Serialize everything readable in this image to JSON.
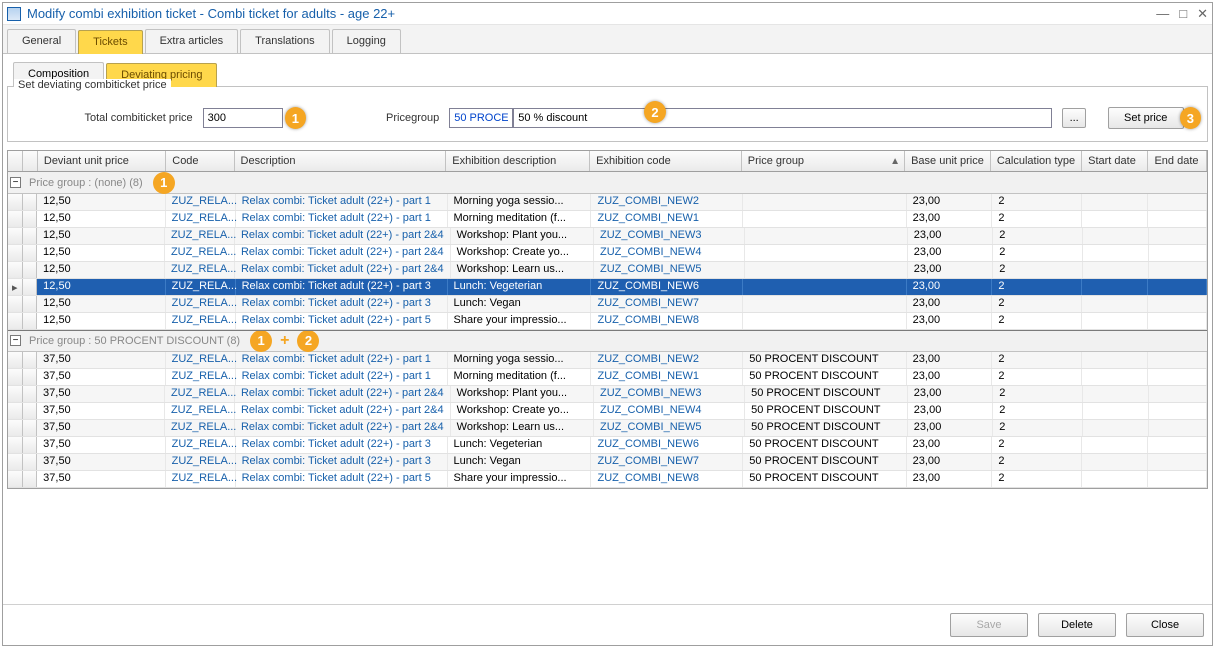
{
  "window": {
    "title": "Modify combi exhibition ticket  - Combi ticket for adults - age 22+"
  },
  "tabs_primary": {
    "items": [
      "General",
      "Tickets",
      "Extra articles",
      "Translations",
      "Logging"
    ],
    "active_index": 1
  },
  "tabs_secondary": {
    "items": [
      "Composition",
      "Deviating pricing"
    ],
    "active_index": 1
  },
  "pricing_panel": {
    "title": "Set deviating combiticket price",
    "total_label": "Total combiticket price",
    "total_value": "300",
    "pricegroup_label": "Pricegroup",
    "pricegroup_code": "50 PROCE",
    "pricegroup_desc": "50 % discount",
    "setprice_label": "Set price"
  },
  "grid": {
    "columns": {
      "unit": "Deviant unit price",
      "code": "Code",
      "desc": "Description",
      "exdesc": "Exhibition description",
      "excode": "Exhibition code",
      "pgroup": "Price group",
      "base": "Base unit price",
      "calc": "Calculation type",
      "start": "Start date",
      "end": "End date"
    },
    "group1": {
      "label": "Price group :   (none) (8)",
      "rows": [
        {
          "unit": "12,50",
          "code": "ZUZ_RELA...",
          "desc": "Relax combi: Ticket adult (22+) - part 1",
          "exdesc": "Morning yoga sessio...",
          "excode": "ZUZ_COMBI_NEW2",
          "pgroup": "",
          "base": "23,00",
          "calc": "2",
          "start": "",
          "end": ""
        },
        {
          "unit": "12,50",
          "code": "ZUZ_RELA...",
          "desc": "Relax combi: Ticket adult (22+) - part 1",
          "exdesc": "Morning meditation (f...",
          "excode": "ZUZ_COMBI_NEW1",
          "pgroup": "",
          "base": "23,00",
          "calc": "2",
          "start": "",
          "end": ""
        },
        {
          "unit": "12,50",
          "code": "ZUZ_RELA...",
          "desc": "Relax combi: Ticket adult (22+) - part 2&4",
          "exdesc": "Workshop: Plant you...",
          "excode": "ZUZ_COMBI_NEW3",
          "pgroup": "",
          "base": "23,00",
          "calc": "2",
          "start": "",
          "end": ""
        },
        {
          "unit": "12,50",
          "code": "ZUZ_RELA...",
          "desc": "Relax combi: Ticket adult (22+) - part 2&4",
          "exdesc": "Workshop: Create yo...",
          "excode": "ZUZ_COMBI_NEW4",
          "pgroup": "",
          "base": "23,00",
          "calc": "2",
          "start": "",
          "end": ""
        },
        {
          "unit": "12,50",
          "code": "ZUZ_RELA...",
          "desc": "Relax combi: Ticket adult (22+) - part 2&4",
          "exdesc": "Workshop: Learn us...",
          "excode": "ZUZ_COMBI_NEW5",
          "pgroup": "",
          "base": "23,00",
          "calc": "2",
          "start": "",
          "end": ""
        },
        {
          "unit": "12,50",
          "code": "ZUZ_RELA...",
          "desc": "Relax combi: Ticket adult (22+) - part 3",
          "exdesc": "Lunch: Vegeterian",
          "excode": "ZUZ_COMBI_NEW6",
          "pgroup": "",
          "base": "23,00",
          "calc": "2",
          "start": "",
          "end": "",
          "selected": true
        },
        {
          "unit": "12,50",
          "code": "ZUZ_RELA...",
          "desc": "Relax combi: Ticket adult (22+) - part 3",
          "exdesc": "Lunch: Vegan",
          "excode": "ZUZ_COMBI_NEW7",
          "pgroup": "",
          "base": "23,00",
          "calc": "2",
          "start": "",
          "end": ""
        },
        {
          "unit": "12,50",
          "code": "ZUZ_RELA...",
          "desc": "Relax combi: Ticket adult (22+) - part 5",
          "exdesc": "Share your impressio...",
          "excode": "ZUZ_COMBI_NEW8",
          "pgroup": "",
          "base": "23,00",
          "calc": "2",
          "start": "",
          "end": ""
        }
      ]
    },
    "group2": {
      "label": "Price group :   50 PROCENT DISCOUNT (8)",
      "rows": [
        {
          "unit": "37,50",
          "code": "ZUZ_RELA...",
          "desc": "Relax combi: Ticket adult (22+) - part 1",
          "exdesc": "Morning yoga sessio...",
          "excode": "ZUZ_COMBI_NEW2",
          "pgroup": "50 PROCENT DISCOUNT",
          "base": "23,00",
          "calc": "2",
          "start": "",
          "end": ""
        },
        {
          "unit": "37,50",
          "code": "ZUZ_RELA...",
          "desc": "Relax combi: Ticket adult (22+) - part 1",
          "exdesc": "Morning meditation (f...",
          "excode": "ZUZ_COMBI_NEW1",
          "pgroup": "50 PROCENT DISCOUNT",
          "base": "23,00",
          "calc": "2",
          "start": "",
          "end": ""
        },
        {
          "unit": "37,50",
          "code": "ZUZ_RELA...",
          "desc": "Relax combi: Ticket adult (22+) - part 2&4",
          "exdesc": "Workshop: Plant you...",
          "excode": "ZUZ_COMBI_NEW3",
          "pgroup": "50 PROCENT DISCOUNT",
          "base": "23,00",
          "calc": "2",
          "start": "",
          "end": ""
        },
        {
          "unit": "37,50",
          "code": "ZUZ_RELA...",
          "desc": "Relax combi: Ticket adult (22+) - part 2&4",
          "exdesc": "Workshop: Create yo...",
          "excode": "ZUZ_COMBI_NEW4",
          "pgroup": "50 PROCENT DISCOUNT",
          "base": "23,00",
          "calc": "2",
          "start": "",
          "end": ""
        },
        {
          "unit": "37,50",
          "code": "ZUZ_RELA...",
          "desc": "Relax combi: Ticket adult (22+) - part 2&4",
          "exdesc": "Workshop: Learn us...",
          "excode": "ZUZ_COMBI_NEW5",
          "pgroup": "50 PROCENT DISCOUNT",
          "base": "23,00",
          "calc": "2",
          "start": "",
          "end": ""
        },
        {
          "unit": "37,50",
          "code": "ZUZ_RELA...",
          "desc": "Relax combi: Ticket adult (22+) - part 3",
          "exdesc": "Lunch: Vegeterian",
          "excode": "ZUZ_COMBI_NEW6",
          "pgroup": "50 PROCENT DISCOUNT",
          "base": "23,00",
          "calc": "2",
          "start": "",
          "end": ""
        },
        {
          "unit": "37,50",
          "code": "ZUZ_RELA...",
          "desc": "Relax combi: Ticket adult (22+) - part 3",
          "exdesc": "Lunch: Vegan",
          "excode": "ZUZ_COMBI_NEW7",
          "pgroup": "50 PROCENT DISCOUNT",
          "base": "23,00",
          "calc": "2",
          "start": "",
          "end": ""
        },
        {
          "unit": "37,50",
          "code": "ZUZ_RELA...",
          "desc": "Relax combi: Ticket adult (22+) - part 5",
          "exdesc": "Share your impressio...",
          "excode": "ZUZ_COMBI_NEW8",
          "pgroup": "50 PROCENT DISCOUNT",
          "base": "23,00",
          "calc": "2",
          "start": "",
          "end": ""
        }
      ]
    }
  },
  "footer": {
    "save": "Save",
    "delete": "Delete",
    "close": "Close"
  },
  "callouts": {
    "c1": "1",
    "c2": "2",
    "c3": "3"
  }
}
